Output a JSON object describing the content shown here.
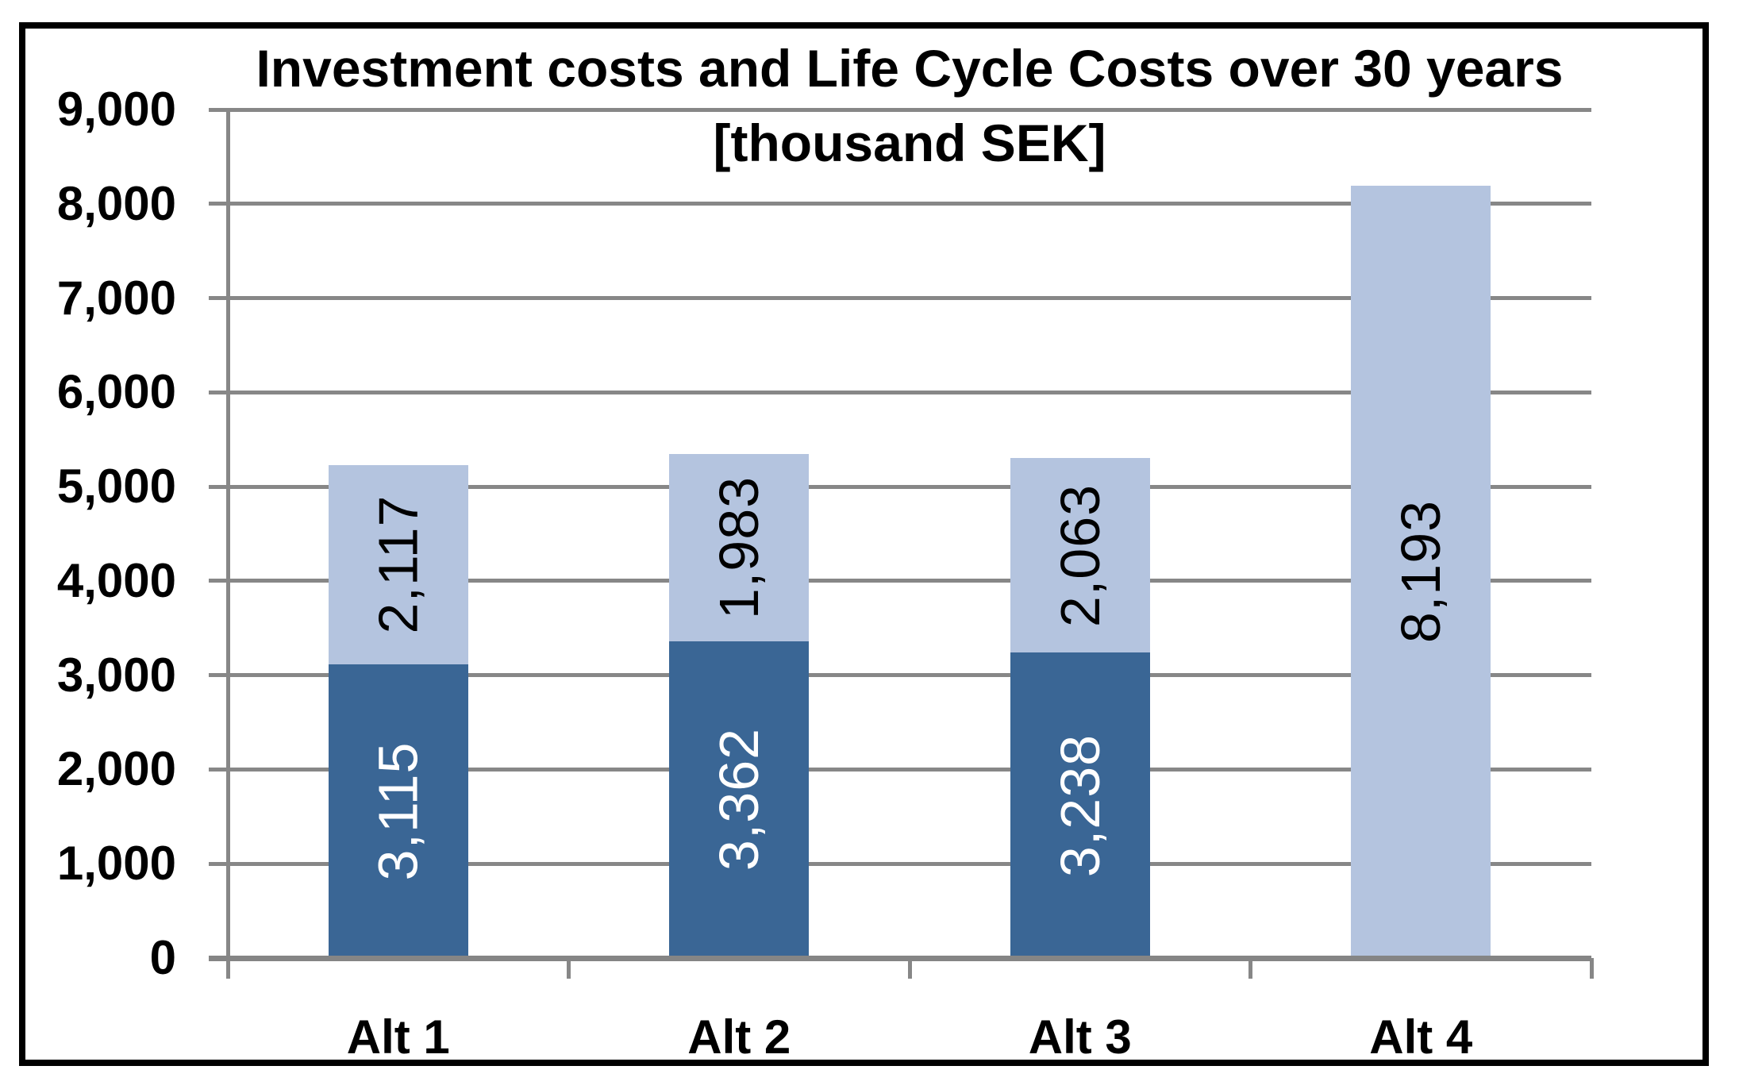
{
  "title": {
    "line1": "Investment costs and Life Cycle Costs over 30 years",
    "line2": "[thousand SEK]"
  },
  "chart_data": {
    "type": "bar",
    "stacked": true,
    "title": "Investment costs and Life Cycle Costs over 30 years [thousand SEK]",
    "categories": [
      "Alt 1",
      "Alt 2",
      "Alt 3",
      "Alt 4"
    ],
    "series": [
      {
        "color": "#3A6695",
        "label_color": "#FFFFFF",
        "values": [
          3115,
          3362,
          3238,
          0
        ]
      },
      {
        "color": "#B4C4DF",
        "label_color": "#000000",
        "values": [
          2117,
          1983,
          2063,
          8193
        ]
      }
    ],
    "totals": [
      5232,
      5345,
      5301,
      8193
    ],
    "ylim": [
      0,
      9000
    ],
    "ytick_step": 1000,
    "ytick_labels": [
      "0",
      "1,000",
      "2,000",
      "3,000",
      "4,000",
      "5,000",
      "6,000",
      "7,000",
      "8,000",
      "9,000"
    ],
    "xlabel": "",
    "ylabel": "",
    "grid": true,
    "legend": "none",
    "data_label_rotation": -90
  },
  "colors": {
    "bar_dark_blue": "#3A6695",
    "bar_light_blue": "#B4C4DF",
    "gridline": "#878787",
    "frame": "#000000",
    "background": "#FFFFFF"
  }
}
